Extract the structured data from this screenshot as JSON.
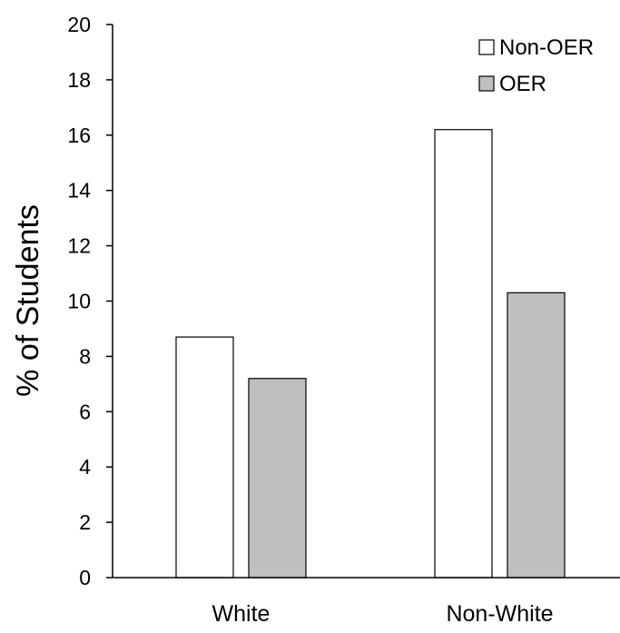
{
  "chart_data": {
    "type": "bar",
    "title": "",
    "xlabel": "",
    "ylabel": "% of Students",
    "ylim": [
      0,
      20
    ],
    "yticks": [
      0,
      2,
      4,
      6,
      8,
      10,
      12,
      14,
      16,
      18,
      20
    ],
    "ytick_labels": [
      "0",
      "2",
      "4",
      "6",
      "8",
      "10",
      "12",
      "14",
      "16",
      "18",
      "20"
    ],
    "categories": [
      "White",
      "Non-White"
    ],
    "series": [
      {
        "name": "Non-OER",
        "values": [
          8.7,
          16.2
        ],
        "color": "#ffffff"
      },
      {
        "name": "OER",
        "values": [
          7.2,
          10.3
        ],
        "color": "#bfbfbf"
      }
    ],
    "grid": false,
    "legend_position": "top-right",
    "bar_edge_color": "#000000"
  }
}
